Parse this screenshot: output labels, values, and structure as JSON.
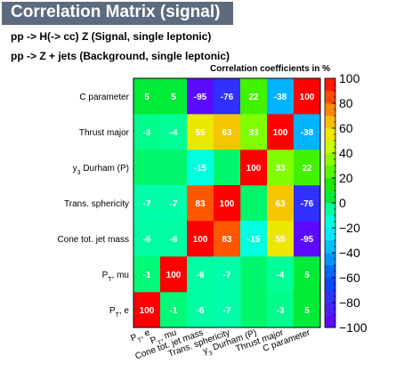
{
  "header": {
    "title": "Correlation Matrix (signal)",
    "signal_line": "pp -> H(-> cc) Z   (Signal, single leptonic)",
    "background_line": "pp -> Z + jets   (Background, single leptonic)"
  },
  "chart_data": {
    "type": "heatmap",
    "title": "Correlation coefficients in %",
    "variables": [
      "P_T, e",
      "P_T, mu",
      "Cone tot. jet mass",
      "Trans. sphericity",
      "y_3 Durham (P)",
      "Thrust major",
      "C parameter"
    ],
    "x_tick_labels": [
      {
        "base": "P",
        "sub": "T",
        "rest": ", e"
      },
      {
        "base": "P",
        "sub": "T",
        "rest": ", mu"
      },
      {
        "base": "Cone tot. jet mass",
        "sub": "",
        "rest": ""
      },
      {
        "base": "Trans. sphericity",
        "sub": "",
        "rest": ""
      },
      {
        "base": "y",
        "sub": "3",
        "rest": " Durham (P)"
      },
      {
        "base": "Thrust major",
        "sub": "",
        "rest": ""
      },
      {
        "base": "C parameter",
        "sub": "",
        "rest": ""
      }
    ],
    "matrix": [
      [
        100,
        -1,
        -6,
        -7,
        null,
        -3,
        5
      ],
      [
        -1,
        100,
        -6,
        -7,
        null,
        -4,
        5
      ],
      [
        -6,
        -6,
        100,
        83,
        -15,
        55,
        -95
      ],
      [
        -7,
        -7,
        83,
        100,
        null,
        63,
        -76
      ],
      [
        null,
        null,
        -15,
        null,
        100,
        33,
        22
      ],
      [
        -3,
        -4,
        55,
        63,
        33,
        100,
        -38
      ],
      [
        5,
        5,
        -95,
        -76,
        22,
        -38,
        100
      ]
    ],
    "zlim": [
      -100,
      100
    ],
    "colorbar_ticks": [
      "100",
      "80",
      "60",
      "40",
      "20",
      "0",
      "−20",
      "−40",
      "−60",
      "−80",
      "−100"
    ],
    "colors": {
      "low": "#6600ff",
      "mid": "#00e000",
      "high": "#ff0000"
    }
  }
}
